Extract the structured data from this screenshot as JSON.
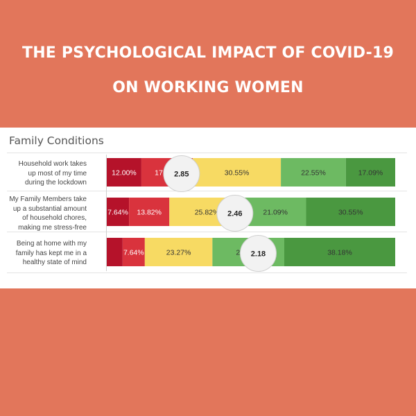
{
  "banner": {
    "title_line1": "THE PSYCHOLOGICAL IMPACT OF COVID-19",
    "title_line2": "ON WORKING WOMEN"
  },
  "chart_data": {
    "type": "bar",
    "orientation": "horizontal-stacked",
    "title": "Family Conditions",
    "colors": [
      "#B5122A",
      "#D9333D",
      "#F7DA63",
      "#6DBA62",
      "#4A9840"
    ],
    "rows": [
      {
        "label_lines": [
          "Household work takes",
          "up most of my time",
          "during the lockdown"
        ],
        "segments": [
          12.0,
          17.82,
          30.55,
          22.55,
          17.09
        ],
        "labels": [
          "12.00%",
          "17.82%",
          "30.55%",
          "22.55%",
          "17.09%"
        ],
        "score": "2.85",
        "score_value": 2.85
      },
      {
        "label_lines": [
          "My Family Members take",
          "up a substantial amount",
          "of household chores,",
          "making me stress-free"
        ],
        "segments": [
          7.64,
          13.82,
          25.82,
          21.09,
          30.55
        ],
        "labels": [
          "7.64%",
          "13.82%",
          "25.82%",
          "21.09%",
          "30.55%"
        ],
        "score": "2.46",
        "score_value": 2.46
      },
      {
        "label_lines": [
          "Being at home with my",
          "family has kept me in a",
          "healthy state of mind"
        ],
        "segments": [
          5.45,
          7.64,
          23.27,
          24.73,
          38.18
        ],
        "labels": [
          "",
          "7.64%",
          "23.27%",
          "24.73%",
          "38.18%"
        ],
        "score": "2.18",
        "score_value": 2.18
      }
    ]
  }
}
